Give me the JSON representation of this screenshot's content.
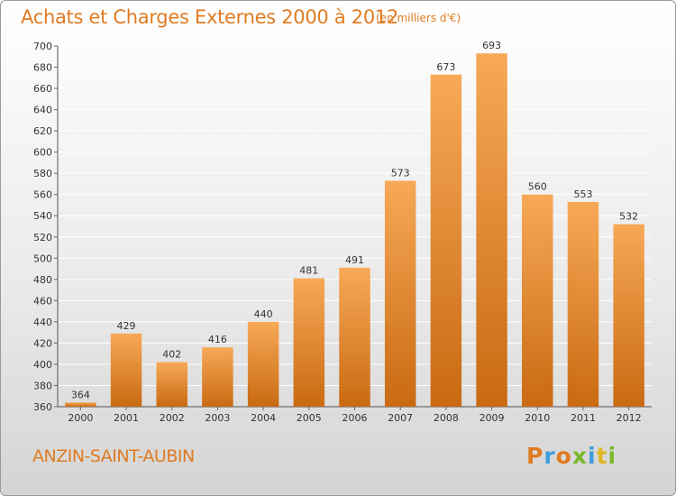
{
  "header": {
    "title": "Achats et Charges Externes 2000 à 2012",
    "subtitle": "(en milliers d'€)"
  },
  "footer": {
    "commune": "ANZIN-SAINT-AUBIN",
    "logo": "Proxiti",
    "logo_colors": [
      "#e07b22",
      "#3d9de0",
      "#e07b22",
      "#7ab82a",
      "#3d9de0",
      "#e0b822",
      "#7ab82a"
    ]
  },
  "colors": {
    "bar_light": "#f7a957",
    "bar_dark": "#c96a12",
    "text_orange": "#e07b22",
    "grid": "#ffffff",
    "axis_text": "#333333"
  },
  "chart_data": {
    "type": "bar",
    "title": "Achats et Charges Externes 2000 à 2012",
    "categories": [
      "2000",
      "2001",
      "2002",
      "2003",
      "2004",
      "2005",
      "2006",
      "2007",
      "2008",
      "2009",
      "2010",
      "2011",
      "2012"
    ],
    "values": [
      364,
      429,
      402,
      416,
      440,
      481,
      491,
      573,
      673,
      693,
      560,
      553,
      532
    ],
    "ylim": [
      360,
      700
    ],
    "ytick_step": 20,
    "grid": true
  }
}
